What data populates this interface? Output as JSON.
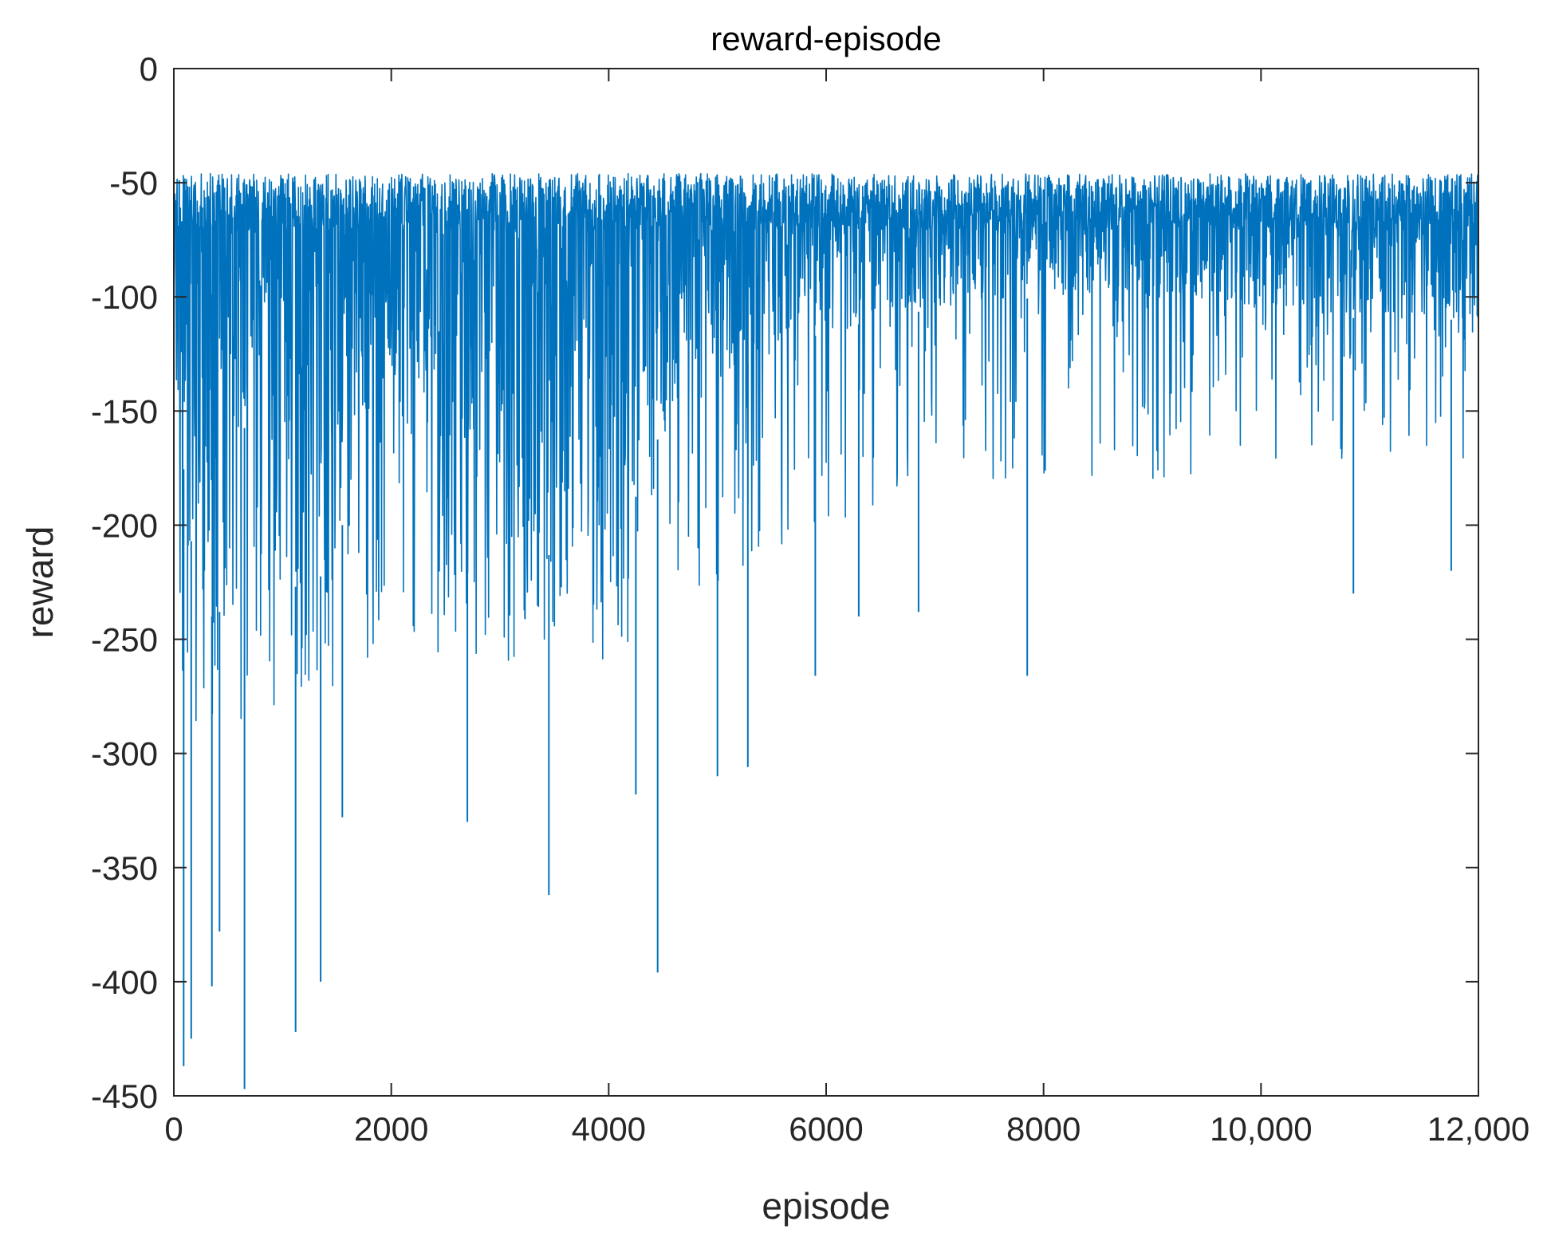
{
  "chart_data": {
    "type": "line",
    "title": "reward-episode",
    "xlabel": "episode",
    "ylabel": "reward",
    "xlim": [
      0,
      12000
    ],
    "ylim": [
      -450,
      0
    ],
    "grid": false,
    "legend": "none",
    "x_ticks": [
      0,
      2000,
      4000,
      6000,
      8000,
      10000,
      12000
    ],
    "x_tick_labels": [
      "0",
      "2000",
      "4000",
      "6000",
      "8000",
      "10,000",
      "12,000"
    ],
    "y_ticks": [
      0,
      -50,
      -100,
      -150,
      -200,
      -250,
      -300,
      -350,
      -400,
      -450
    ],
    "y_tick_labels": [
      "0",
      "-50",
      "-100",
      "-150",
      "-200",
      "-250",
      "-300",
      "-350",
      "-400",
      "-450"
    ],
    "series": [
      {
        "color": "#0072BD",
        "n_episodes": 12000,
        "upper_envelope": [
          [
            0,
            -46
          ],
          [
            12000,
            -46
          ]
        ],
        "dense_lower_envelope": [
          [
            0,
            -135
          ],
          [
            200,
            -225
          ],
          [
            400,
            -245
          ],
          [
            700,
            -140
          ],
          [
            1000,
            -215
          ],
          [
            1200,
            -235
          ],
          [
            1500,
            -210
          ],
          [
            1800,
            -150
          ],
          [
            2000,
            -135
          ],
          [
            2400,
            -195
          ],
          [
            2800,
            -205
          ],
          [
            3200,
            -210
          ],
          [
            3600,
            -215
          ],
          [
            4000,
            -225
          ],
          [
            4400,
            -165
          ],
          [
            5000,
            -135
          ],
          [
            5500,
            -125
          ],
          [
            6000,
            -115
          ],
          [
            7000,
            -105
          ],
          [
            8000,
            -100
          ],
          [
            9000,
            -100
          ],
          [
            10000,
            -105
          ],
          [
            11000,
            -110
          ],
          [
            12000,
            -110
          ]
        ],
        "sparse_lower_envelope": [
          [
            0,
            -290
          ],
          [
            500,
            -300
          ],
          [
            1000,
            -280
          ],
          [
            1500,
            -270
          ],
          [
            2000,
            -250
          ],
          [
            2500,
            -260
          ],
          [
            3000,
            -265
          ],
          [
            3500,
            -250
          ],
          [
            4000,
            -260
          ],
          [
            4500,
            -240
          ],
          [
            5000,
            -230
          ],
          [
            6000,
            -200
          ],
          [
            7000,
            -185
          ],
          [
            8000,
            -180
          ],
          [
            9000,
            -180
          ],
          [
            10000,
            -175
          ],
          [
            11000,
            -175
          ],
          [
            12000,
            -170
          ]
        ],
        "notable_minima": [
          [
            90,
            -437
          ],
          [
            160,
            -425
          ],
          [
            350,
            -402
          ],
          [
            420,
            -378
          ],
          [
            650,
            -447
          ],
          [
            1120,
            -422
          ],
          [
            1350,
            -400
          ],
          [
            1550,
            -328
          ],
          [
            2700,
            -330
          ],
          [
            3450,
            -362
          ],
          [
            4250,
            -318
          ],
          [
            4450,
            -396
          ],
          [
            5000,
            -310
          ],
          [
            5280,
            -306
          ],
          [
            5900,
            -266
          ],
          [
            6300,
            -240
          ],
          [
            6850,
            -238
          ],
          [
            7850,
            -266
          ],
          [
            10850,
            -230
          ],
          [
            11750,
            -220
          ]
        ]
      }
    ]
  }
}
